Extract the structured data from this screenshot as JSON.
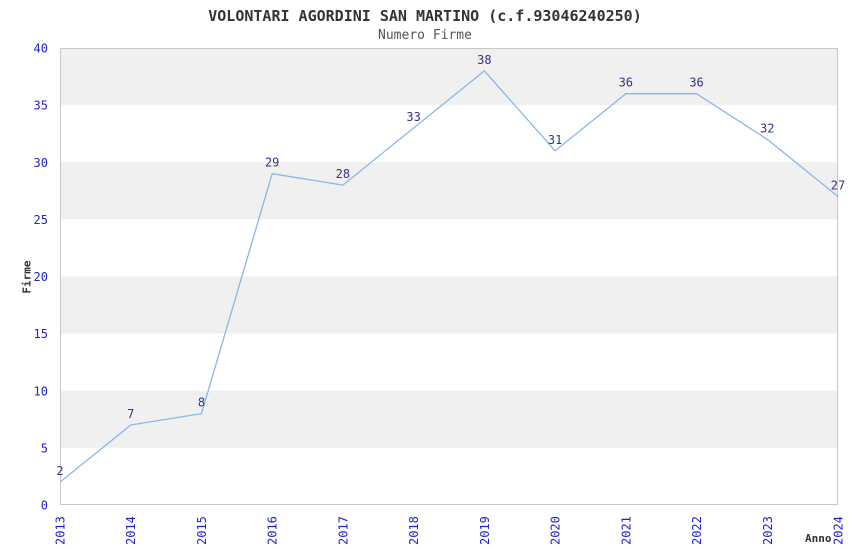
{
  "header": {
    "title": "VOLONTARI AGORDINI SAN MARTINO (c.f.93046240250)",
    "subtitle": "Numero Firme"
  },
  "chart_data": {
    "type": "line",
    "title": "VOLONTARI AGORDINI SAN MARTINO (c.f.93046240250)",
    "subtitle": "Numero Firme",
    "xlabel": "Anno",
    "ylabel": "Firme",
    "categories": [
      2013,
      2014,
      2015,
      2016,
      2017,
      2018,
      2019,
      2020,
      2021,
      2022,
      2023,
      2024
    ],
    "series": [
      {
        "name": "Numero Firme",
        "values": [
          2,
          7,
          8,
          29,
          28,
          33,
          38,
          31,
          36,
          36,
          32,
          27
        ]
      }
    ],
    "point_labels_visible": true,
    "ylim": [
      0,
      40
    ],
    "ytick_step": 5,
    "grid": "alternating-horizontal-bands",
    "legend_position": "none",
    "colors": {
      "line": "#8bb6e8",
      "tick_label": "#2222cc",
      "point_label": "#333388",
      "band_shaded": "#f0f0f0",
      "band_plain": "#ffffff",
      "plot_border": "#c8c8c8",
      "title_text": "#333333",
      "subtitle_text": "#555555",
      "axis_label_text": "#333333",
      "background": "#ffffff"
    }
  }
}
